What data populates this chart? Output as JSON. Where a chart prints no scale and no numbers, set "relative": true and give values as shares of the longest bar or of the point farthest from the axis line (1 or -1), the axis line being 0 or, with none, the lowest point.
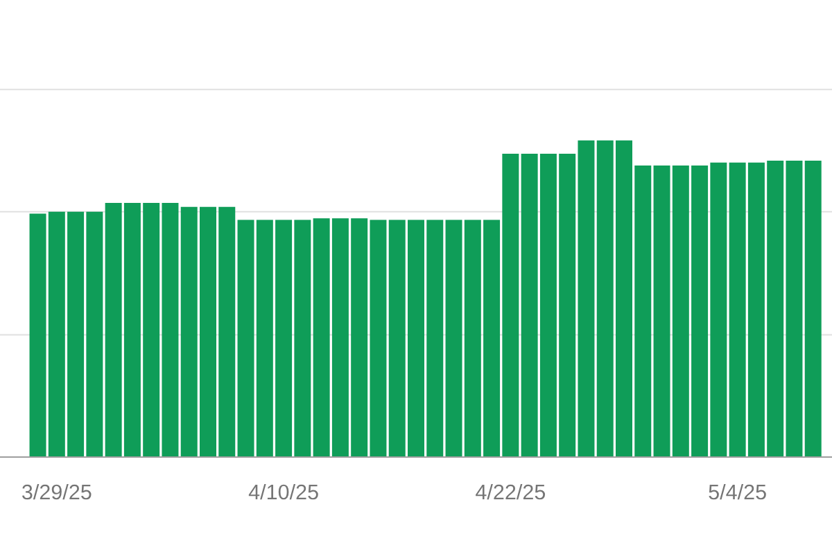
{
  "chart_data": {
    "type": "bar",
    "relative": true,
    "color": "#0f9d58",
    "x": [
      "2025-03-28",
      "2025-03-29",
      "2025-03-30",
      "2025-03-31",
      "2025-04-01",
      "2025-04-02",
      "2025-04-03",
      "2025-04-04",
      "2025-04-05",
      "2025-04-06",
      "2025-04-07",
      "2025-04-08",
      "2025-04-09",
      "2025-04-10",
      "2025-04-11",
      "2025-04-12",
      "2025-04-13",
      "2025-04-14",
      "2025-04-15",
      "2025-04-16",
      "2025-04-17",
      "2025-04-18",
      "2025-04-19",
      "2025-04-20",
      "2025-04-21",
      "2025-04-22",
      "2025-04-23",
      "2025-04-24",
      "2025-04-25",
      "2025-04-26",
      "2025-04-27",
      "2025-04-28",
      "2025-04-29",
      "2025-04-30",
      "2025-05-01",
      "2025-05-02",
      "2025-05-03",
      "2025-05-04",
      "2025-05-05",
      "2025-05-06",
      "2025-05-07",
      "2025-05-08"
    ],
    "values": [
      0.769,
      0.775,
      0.775,
      0.775,
      0.803,
      0.803,
      0.803,
      0.803,
      0.79,
      0.79,
      0.79,
      0.749,
      0.749,
      0.749,
      0.749,
      0.754,
      0.754,
      0.754,
      0.749,
      0.749,
      0.749,
      0.749,
      0.749,
      0.749,
      0.749,
      0.958,
      0.958,
      0.958,
      0.958,
      1,
      1,
      1,
      0.921,
      0.921,
      0.921,
      0.921,
      0.93,
      0.93,
      0.93,
      0.936,
      0.936,
      0.936
    ],
    "xlim": [
      "2025-03-26",
      "2025-05-09"
    ],
    "xticks": [
      {
        "value": "2025-03-29",
        "label": "3/29/25"
      },
      {
        "value": "2025-04-10",
        "label": "4/10/25"
      },
      {
        "value": "2025-04-22",
        "label": "4/22/25"
      },
      {
        "value": "2025-05-04",
        "label": "5/4/25"
      }
    ],
    "tick_labels": "x",
    "ref_lines": [
      {
        "axis": "y",
        "value": 0.386,
        "color": "#e0e0e0"
      },
      {
        "axis": "y",
        "value": 0.775,
        "color": "#e0e0e0"
      },
      {
        "axis": "y",
        "value": 1.161,
        "color": "#e0e0e0"
      }
    ]
  }
}
